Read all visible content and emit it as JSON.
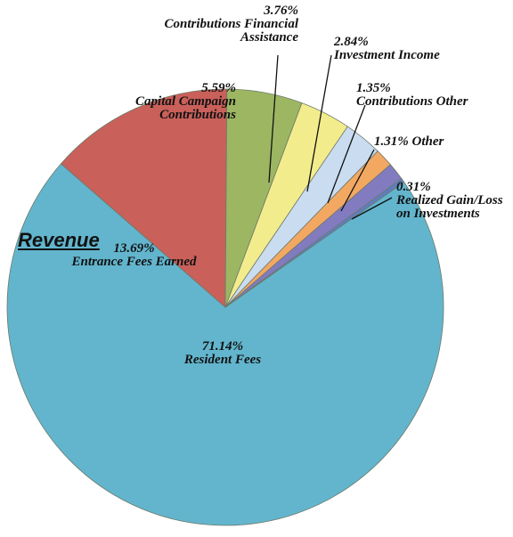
{
  "chart_data": {
    "type": "pie",
    "title": "Revenue",
    "categories": [
      "Resident Fees",
      "Entrance Fees Earned",
      "Capital Campaign Contributions",
      "Contributions Financial Assistance",
      "Investment Income",
      "Contributions Other",
      "Other",
      "Realized Gain/Loss on Investments"
    ],
    "values": [
      71.14,
      13.69,
      5.59,
      3.76,
      2.84,
      1.35,
      1.31,
      0.31
    ],
    "value_labels": [
      "71.14%",
      "13.69%",
      "5.59%",
      "3.76%",
      "2.84%",
      "1.35%",
      "1.31%",
      "0.31%"
    ],
    "colors": [
      "#62b5cd",
      "#c9605a",
      "#9cb662",
      "#f2ec8c",
      "#cadcf0",
      "#f3a862",
      "#827bc0",
      "#5f7dbf"
    ]
  }
}
